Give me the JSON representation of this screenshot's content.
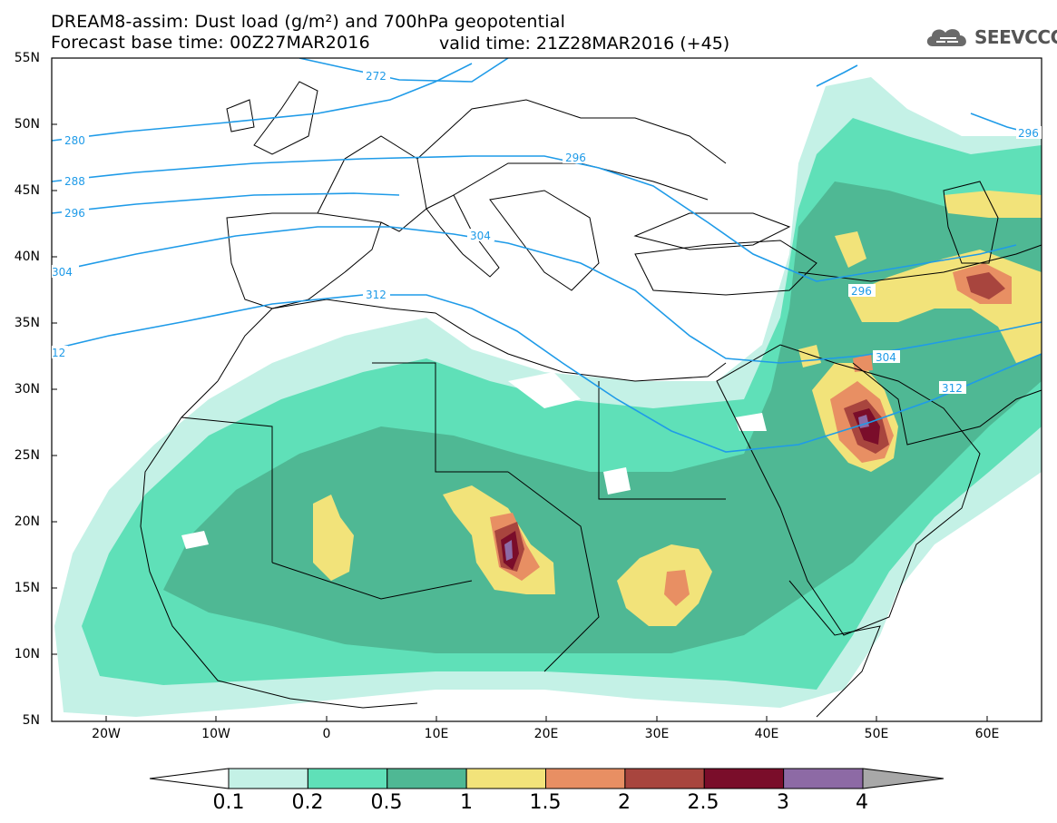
{
  "header": {
    "title_line1": "DREAM8-assim: Dust load (g/m²) and 700hPa geopotential",
    "title_line2": "Forecast base time: 00Z27MAR2016",
    "valid_time": "valid time: 21Z28MAR2016 (+45)",
    "logo_text": "SEEVCCC",
    "logo_icon": "cloud-icon"
  },
  "map": {
    "lat_labels": [
      "55N",
      "50N",
      "45N",
      "40N",
      "35N",
      "30N",
      "25N",
      "20N",
      "15N",
      "10N",
      "5N"
    ],
    "lon_labels": [
      "20W",
      "10W",
      "0",
      "10E",
      "20E",
      "30E",
      "40E",
      "50E",
      "60E"
    ],
    "contour_labels": [
      "272",
      "280",
      "288",
      "296",
      "304",
      "312",
      "296",
      "296",
      "304",
      "312",
      "12"
    ]
  },
  "colorbar": {
    "labels": [
      "0.1",
      "0.2",
      "0.5",
      "1",
      "1.5",
      "2",
      "2.5",
      "3",
      "4"
    ],
    "colors": [
      "#c4f1e6",
      "#5fe0b8",
      "#4fb894",
      "#f2e37a",
      "#e88f63",
      "#a8453e",
      "#7a0d2a",
      "#8d6aa5",
      "#a8a8a8"
    ]
  }
}
